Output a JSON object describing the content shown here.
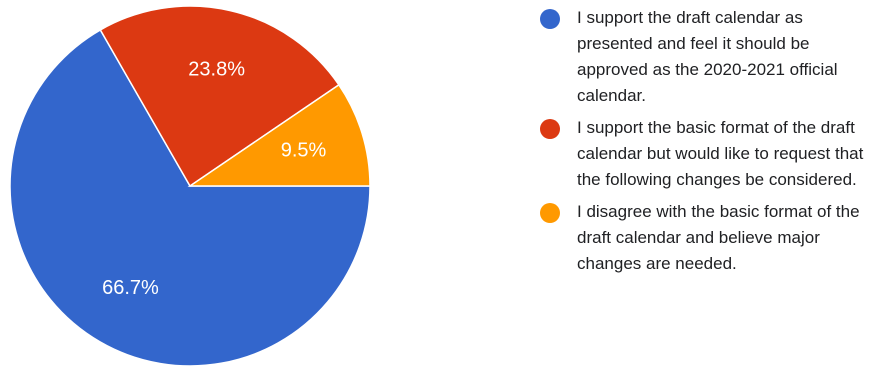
{
  "chart_data": {
    "type": "pie",
    "slices": [
      {
        "label": "I support the draft calendar as presented and feel it should be approved as the 2020-2021 official calendar.",
        "value": 66.7,
        "display": "66.7%",
        "color": "#3366cc"
      },
      {
        "label": "I support the basic format of the draft calendar but would like to request that the following changes be considered.",
        "value": 23.8,
        "display": "23.8%",
        "color": "#dc3912"
      },
      {
        "label": "I disagree with the basic format of the draft calendar and believe major changes are needed.",
        "value": 9.5,
        "display": "9.5%",
        "color": "#ff9900"
      }
    ],
    "legend_position": "right"
  }
}
